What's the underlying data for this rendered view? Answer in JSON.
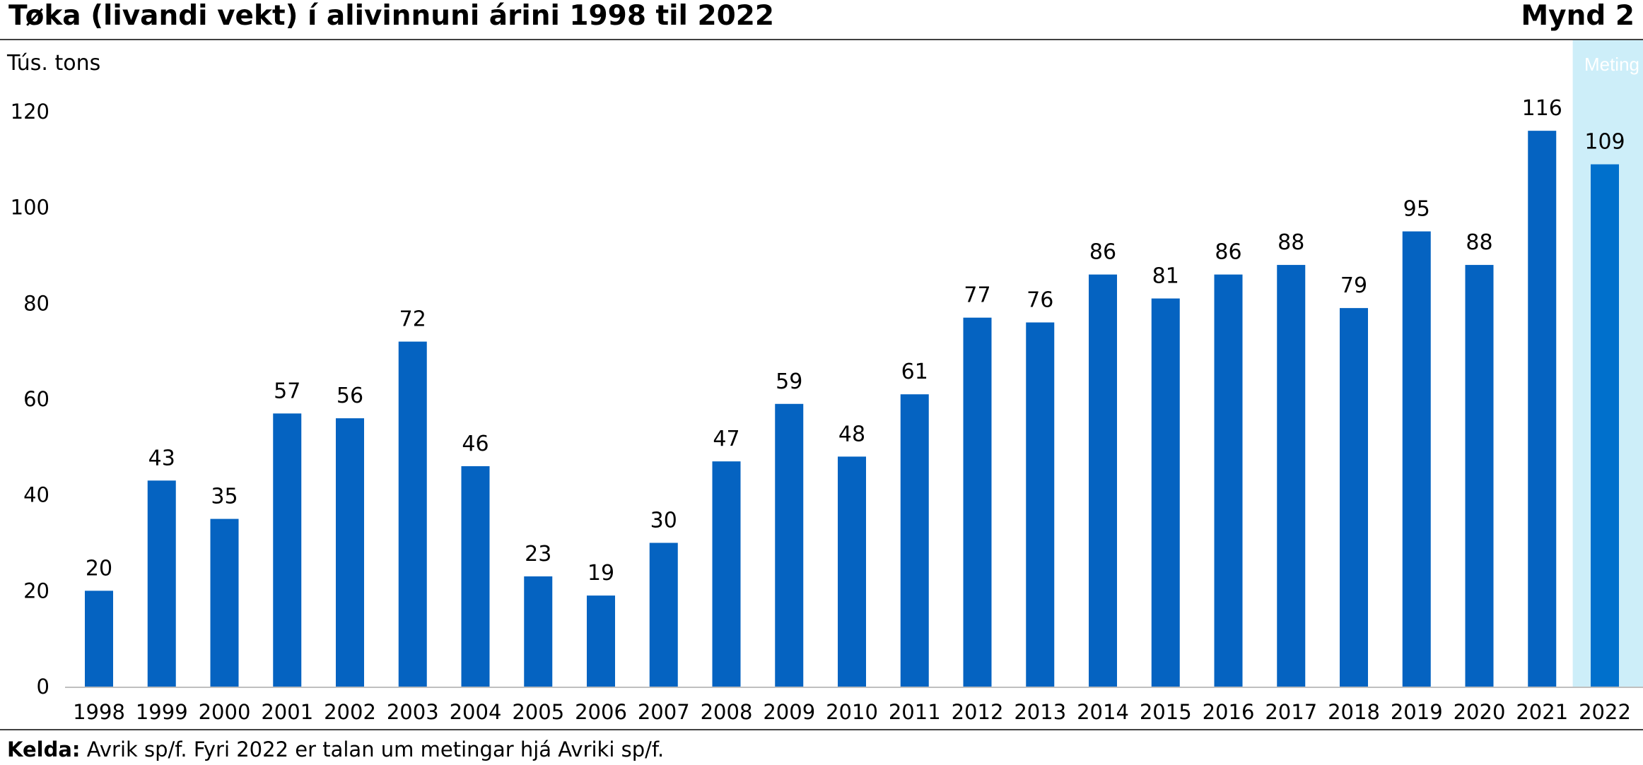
{
  "header": {
    "title": "Tøka (livandi vekt) í alivinnuni árini 1998 til 2022",
    "figure_label": "Mynd 2"
  },
  "footer": {
    "source_label": "Kelda:",
    "source_text": " Avrik sp/f. Fyri 2022 er talan um metingar hjá Avriki sp/f."
  },
  "chart_data": {
    "type": "bar",
    "title": "Tøka (livandi vekt) í alivinnuni árini 1998 til 2022",
    "ylabel": "Tús. tons",
    "xlabel": "",
    "ylim": [
      0,
      120
    ],
    "yticks": [
      0,
      20,
      40,
      60,
      80,
      100,
      120
    ],
    "categories": [
      "1998",
      "1999",
      "2000",
      "2001",
      "2002",
      "2003",
      "2004",
      "2005",
      "2006",
      "2007",
      "2008",
      "2009",
      "2010",
      "2011",
      "2012",
      "2013",
      "2014",
      "2015",
      "2016",
      "2017",
      "2018",
      "2019",
      "2020",
      "2021",
      "2022"
    ],
    "values": [
      20,
      43,
      35,
      57,
      56,
      72,
      46,
      23,
      19,
      30,
      47,
      59,
      48,
      61,
      77,
      76,
      86,
      81,
      86,
      88,
      79,
      95,
      88,
      116,
      109
    ],
    "bar_color": "#0563c1",
    "estimate_bar_color": "#0070cc",
    "estimate_band": {
      "category": "2022",
      "label": "Meting",
      "color": "#cdeef9"
    },
    "legend": "none",
    "grid": false
  }
}
